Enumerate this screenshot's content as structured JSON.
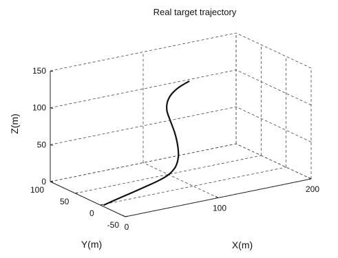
{
  "chart_data": {
    "type": "line3d",
    "title": "Real target trajectory",
    "xlabel": "X(m)",
    "ylabel": "Y(m)",
    "zlabel": "Z(m)",
    "xlim": [
      0,
      200
    ],
    "ylim": [
      -50,
      100
    ],
    "zlim": [
      0,
      150
    ],
    "xticks": [
      0,
      100,
      200
    ],
    "yticks": [
      -50,
      0,
      50,
      100
    ],
    "zticks": [
      0,
      50,
      100,
      150
    ],
    "grid": true,
    "series": [
      {
        "points": [
          {
            "x": 3,
            "y": -2,
            "z": 0
          },
          {
            "x": 18,
            "y": -1,
            "z": 4
          },
          {
            "x": 36,
            "y": 1,
            "z": 8
          },
          {
            "x": 52,
            "y": 4,
            "z": 11
          },
          {
            "x": 66,
            "y": 8,
            "z": 13
          },
          {
            "x": 80,
            "y": 13,
            "z": 16
          },
          {
            "x": 91,
            "y": 19,
            "z": 22
          },
          {
            "x": 98,
            "y": 26,
            "z": 32
          },
          {
            "x": 101,
            "y": 33,
            "z": 45
          },
          {
            "x": 101,
            "y": 39,
            "z": 60
          },
          {
            "x": 99,
            "y": 44,
            "z": 75
          },
          {
            "x": 97,
            "y": 47,
            "z": 88
          },
          {
            "x": 98,
            "y": 48,
            "z": 99
          },
          {
            "x": 102,
            "y": 48,
            "z": 108
          },
          {
            "x": 108,
            "y": 47,
            "z": 115
          },
          {
            "x": 114,
            "y": 45,
            "z": 120
          },
          {
            "x": 119,
            "y": 44,
            "z": 123
          }
        ]
      }
    ]
  }
}
